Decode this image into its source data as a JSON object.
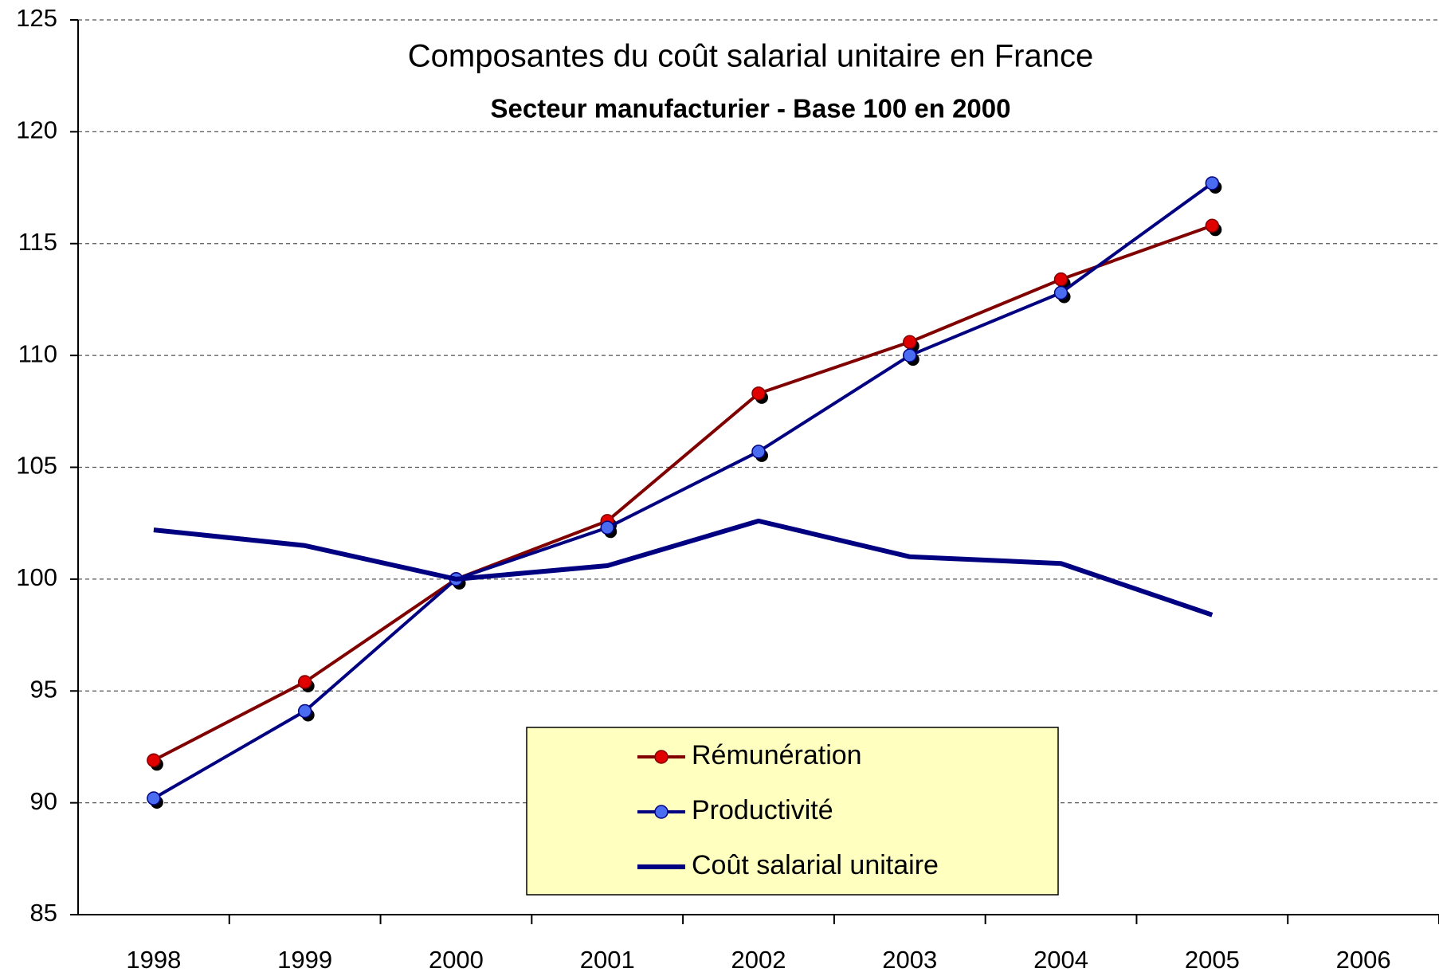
{
  "chart_data": {
    "type": "line",
    "title": "Composantes du coût salarial unitaire en France",
    "subtitle": "Secteur manufacturier - Base 100 en 2000",
    "categories": [
      "1998",
      "1999",
      "2000",
      "2001",
      "2002",
      "2003",
      "2004",
      "2005",
      "2006"
    ],
    "series": [
      {
        "name": "Rémunération",
        "color": "#800000",
        "marker_color": "#e00000",
        "marker": true,
        "values": [
          91.9,
          95.4,
          100,
          102.6,
          108.3,
          110.6,
          113.4,
          115.8,
          null
        ]
      },
      {
        "name": "Productivité",
        "color": "#000080",
        "marker_color": "#4a6cf0",
        "marker": true,
        "values": [
          90.2,
          94.1,
          100,
          102.3,
          105.7,
          110.0,
          112.8,
          117.7,
          null
        ]
      },
      {
        "name": "Coût salarial unitaire",
        "color": "#000080",
        "marker": false,
        "values": [
          102.2,
          101.5,
          100,
          100.6,
          102.6,
          101.0,
          100.7,
          98.4,
          null
        ]
      }
    ],
    "ylim": [
      85,
      125
    ],
    "yticks": [
      85,
      90,
      95,
      100,
      105,
      110,
      115,
      120,
      125
    ],
    "grid": true
  }
}
